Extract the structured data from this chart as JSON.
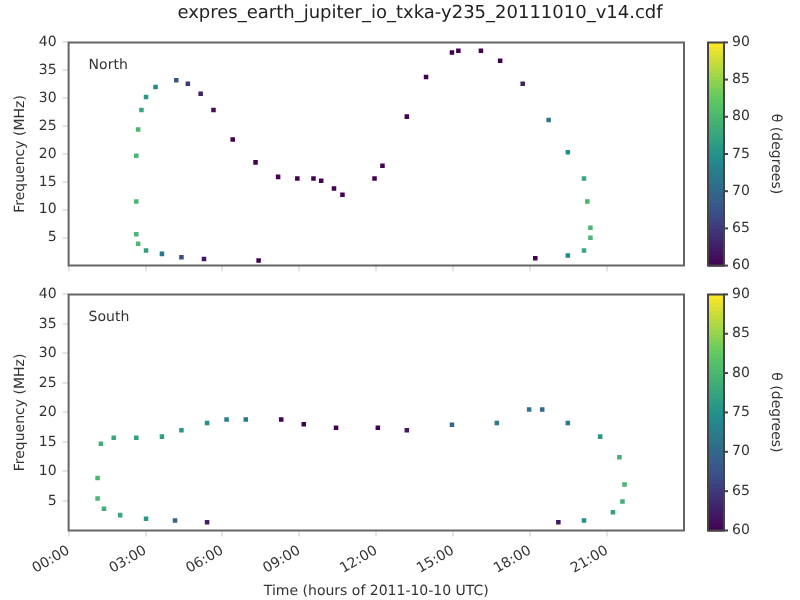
{
  "chart_data": [
    {
      "type": "scatter",
      "title": "expres_earth_jupiter_io_txka-y235_20111010_v14.cdf",
      "annotations": [
        "North"
      ],
      "ylabel": "Frequency (MHz)",
      "clabel": "θ (degrees)",
      "marker": "square",
      "tick_labels": "y",
      "x": [
        2.64,
        2.64,
        2.64,
        2.71,
        2.84,
        3.02,
        3.39,
        4.2,
        4.65,
        5.15,
        5.65,
        6.4,
        7.29,
        8.17,
        8.92,
        9.55,
        9.85,
        10.35,
        10.68,
        2.71,
        3.02,
        3.64,
        4.4,
        5.28,
        7.41,
        11.93,
        12.24,
        13.19,
        13.94,
        14.95,
        15.2,
        16.08,
        16.83,
        17.71,
        18.72,
        19.47,
        20.1,
        20.23,
        20.35,
        20.35,
        20.1,
        19.47,
        18.2
      ],
      "values": [
        5.6,
        11.5,
        19.7,
        24.4,
        27.9,
        30.2,
        32.0,
        33.2,
        32.6,
        30.8,
        27.9,
        22.6,
        18.5,
        15.9,
        15.6,
        15.6,
        15.2,
        13.8,
        12.7,
        3.9,
        2.7,
        2.1,
        1.5,
        1.2,
        0.9,
        15.6,
        17.9,
        26.7,
        33.8,
        38.2,
        38.5,
        38.5,
        36.7,
        32.6,
        26.1,
        20.3,
        15.6,
        11.5,
        6.8,
        5.0,
        2.7,
        1.8,
        1.3
      ],
      "cvalues": [
        80,
        80,
        80,
        80,
        78,
        76,
        74,
        68,
        65,
        63,
        61,
        60,
        60,
        60,
        60,
        60,
        60,
        60,
        60,
        80,
        77,
        72,
        67,
        62,
        60,
        60,
        60,
        60,
        60,
        60,
        60,
        60,
        60,
        63,
        72,
        75,
        78,
        80,
        80,
        80,
        78,
        74,
        60
      ],
      "xlim": [
        0,
        24
      ],
      "xticks": [
        {
          "value": 0,
          "label": null
        },
        {
          "value": 3,
          "label": null
        },
        {
          "value": 6,
          "label": null
        },
        {
          "value": 9,
          "label": null
        },
        {
          "value": 12,
          "label": null
        },
        {
          "value": 15,
          "label": null
        },
        {
          "value": 18,
          "label": null
        },
        {
          "value": 21,
          "label": null
        }
      ],
      "ylim": [
        0,
        40
      ],
      "yticks": [
        5,
        10,
        15,
        20,
        25,
        30,
        35,
        40
      ],
      "clim": [
        60,
        90
      ],
      "cticks": [
        60,
        65,
        70,
        75,
        80,
        85,
        90
      ]
    },
    {
      "type": "scatter",
      "annotations": [
        "South"
      ],
      "xlabel": "Time (hours of 2011-10-10 UTC)",
      "ylabel": "Frequency (MHz)",
      "clabel": "θ (degrees)",
      "marker": "square",
      "x": [
        1.13,
        1.26,
        1.76,
        2.64,
        3.64,
        4.4,
        5.4,
        6.16,
        6.91,
        8.29,
        9.17,
        10.43,
        12.06,
        13.19,
        14.95,
        16.7,
        17.96,
        18.47,
        19.47,
        20.73,
        21.48,
        21.68,
        21.6,
        21.23,
        20.1,
        19.1,
        1.13,
        1.38,
        2.01,
        3.02,
        4.15,
        5.4
      ],
      "values": [
        8.9,
        14.7,
        15.7,
        15.7,
        15.9,
        17.0,
        18.2,
        18.8,
        18.8,
        18.8,
        18.0,
        17.4,
        17.4,
        17.0,
        17.9,
        18.2,
        20.5,
        20.5,
        18.2,
        15.9,
        12.4,
        7.8,
        4.9,
        3.1,
        1.7,
        1.4,
        5.4,
        3.7,
        2.6,
        2.0,
        1.7,
        1.4
      ],
      "cvalues": [
        80,
        79,
        78,
        77,
        77,
        76,
        75,
        73,
        72,
        60,
        60,
        60,
        60,
        62,
        70,
        72,
        72,
        70,
        72,
        76,
        79,
        80,
        79,
        77,
        75,
        62,
        80,
        79,
        78,
        76,
        70,
        63
      ],
      "xlim": [
        0,
        24
      ],
      "xticks": [
        {
          "value": 0,
          "label": "00:00"
        },
        {
          "value": 3,
          "label": "03:00"
        },
        {
          "value": 6,
          "label": "06:00"
        },
        {
          "value": 9,
          "label": "09:00"
        },
        {
          "value": 12,
          "label": "12:00"
        },
        {
          "value": 15,
          "label": "15:00"
        },
        {
          "value": 18,
          "label": "18:00"
        },
        {
          "value": 21,
          "label": "21:00"
        }
      ],
      "ylim": [
        0,
        40
      ],
      "yticks": [
        5,
        10,
        15,
        20,
        25,
        30,
        35,
        40
      ],
      "clim": [
        60,
        90
      ],
      "cticks": [
        60,
        65,
        70,
        75,
        80,
        85,
        90
      ]
    }
  ]
}
